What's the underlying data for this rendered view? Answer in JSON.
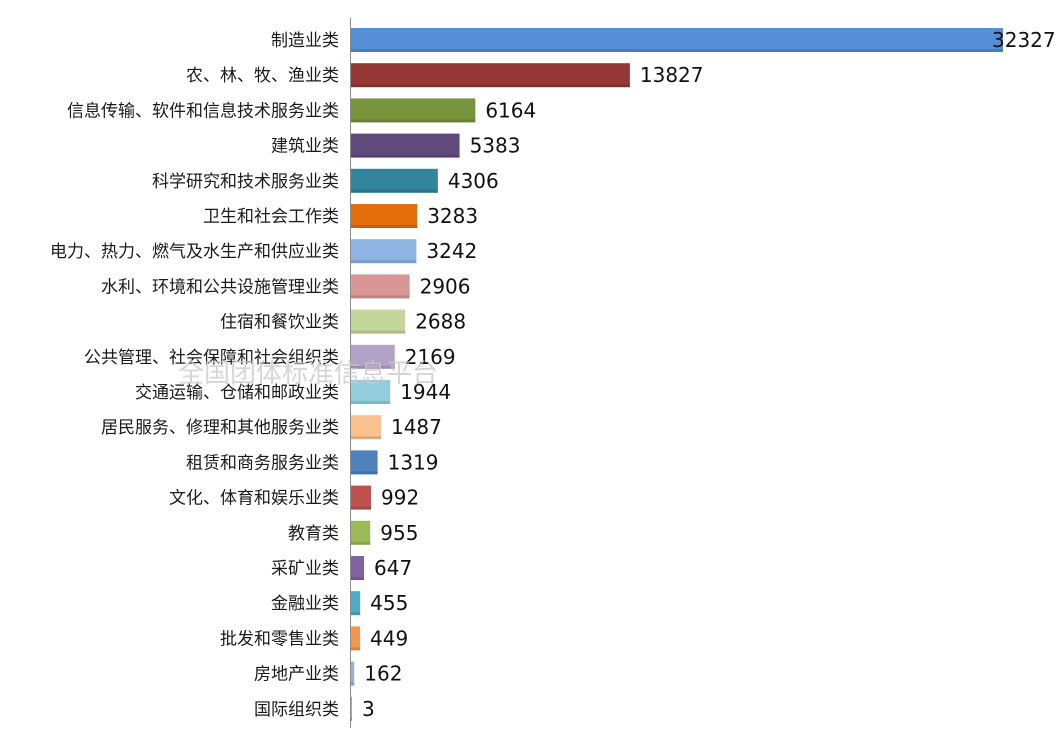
{
  "chart_data": {
    "type": "bar",
    "orientation": "horizontal",
    "title": "",
    "xlabel": "",
    "ylabel": "",
    "categories": [
      "制造业类",
      "农、林、牧、渔业类",
      "信息传输、软件和信息技术服务业类",
      "建筑业类",
      "科学研究和技术服务业类",
      "卫生和社会工作类",
      "电力、热力、燃气及水生产和供应业类",
      "水利、环境和公共设施管理业类",
      "住宿和餐饮业类",
      "公共管理、社会保障和社会组织类",
      "交通运输、仓储和邮政业类",
      "居民服务、修理和其他服务业类",
      "租赁和商务服务业类",
      "文化、体育和娱乐业类",
      "教育类",
      "采矿业类",
      "金融业类",
      "批发和零售业类",
      "房地产业类",
      "国际组织类"
    ],
    "values": [
      32327,
      13827,
      6164,
      5383,
      4306,
      3283,
      3242,
      2906,
      2688,
      2169,
      1944,
      1487,
      1319,
      992,
      955,
      647,
      455,
      449,
      162,
      3
    ],
    "xlim": [
      0,
      32327
    ],
    "grid": false,
    "legend": "none",
    "colors": [
      "#558ED5",
      "#953735",
      "#77933C",
      "#604A7B",
      "#31859C",
      "#E46C0A",
      "#8EB4E3",
      "#D99694",
      "#C3D69B",
      "#B3A2C7",
      "#93CDDD",
      "#FAC090",
      "#4F81BD",
      "#C0504D",
      "#9BBB59",
      "#8064A2",
      "#4BACC6",
      "#F79646",
      "#95B3D7",
      "#D99694"
    ]
  },
  "watermark": {
    "text": "全国团体标准信息平台"
  }
}
